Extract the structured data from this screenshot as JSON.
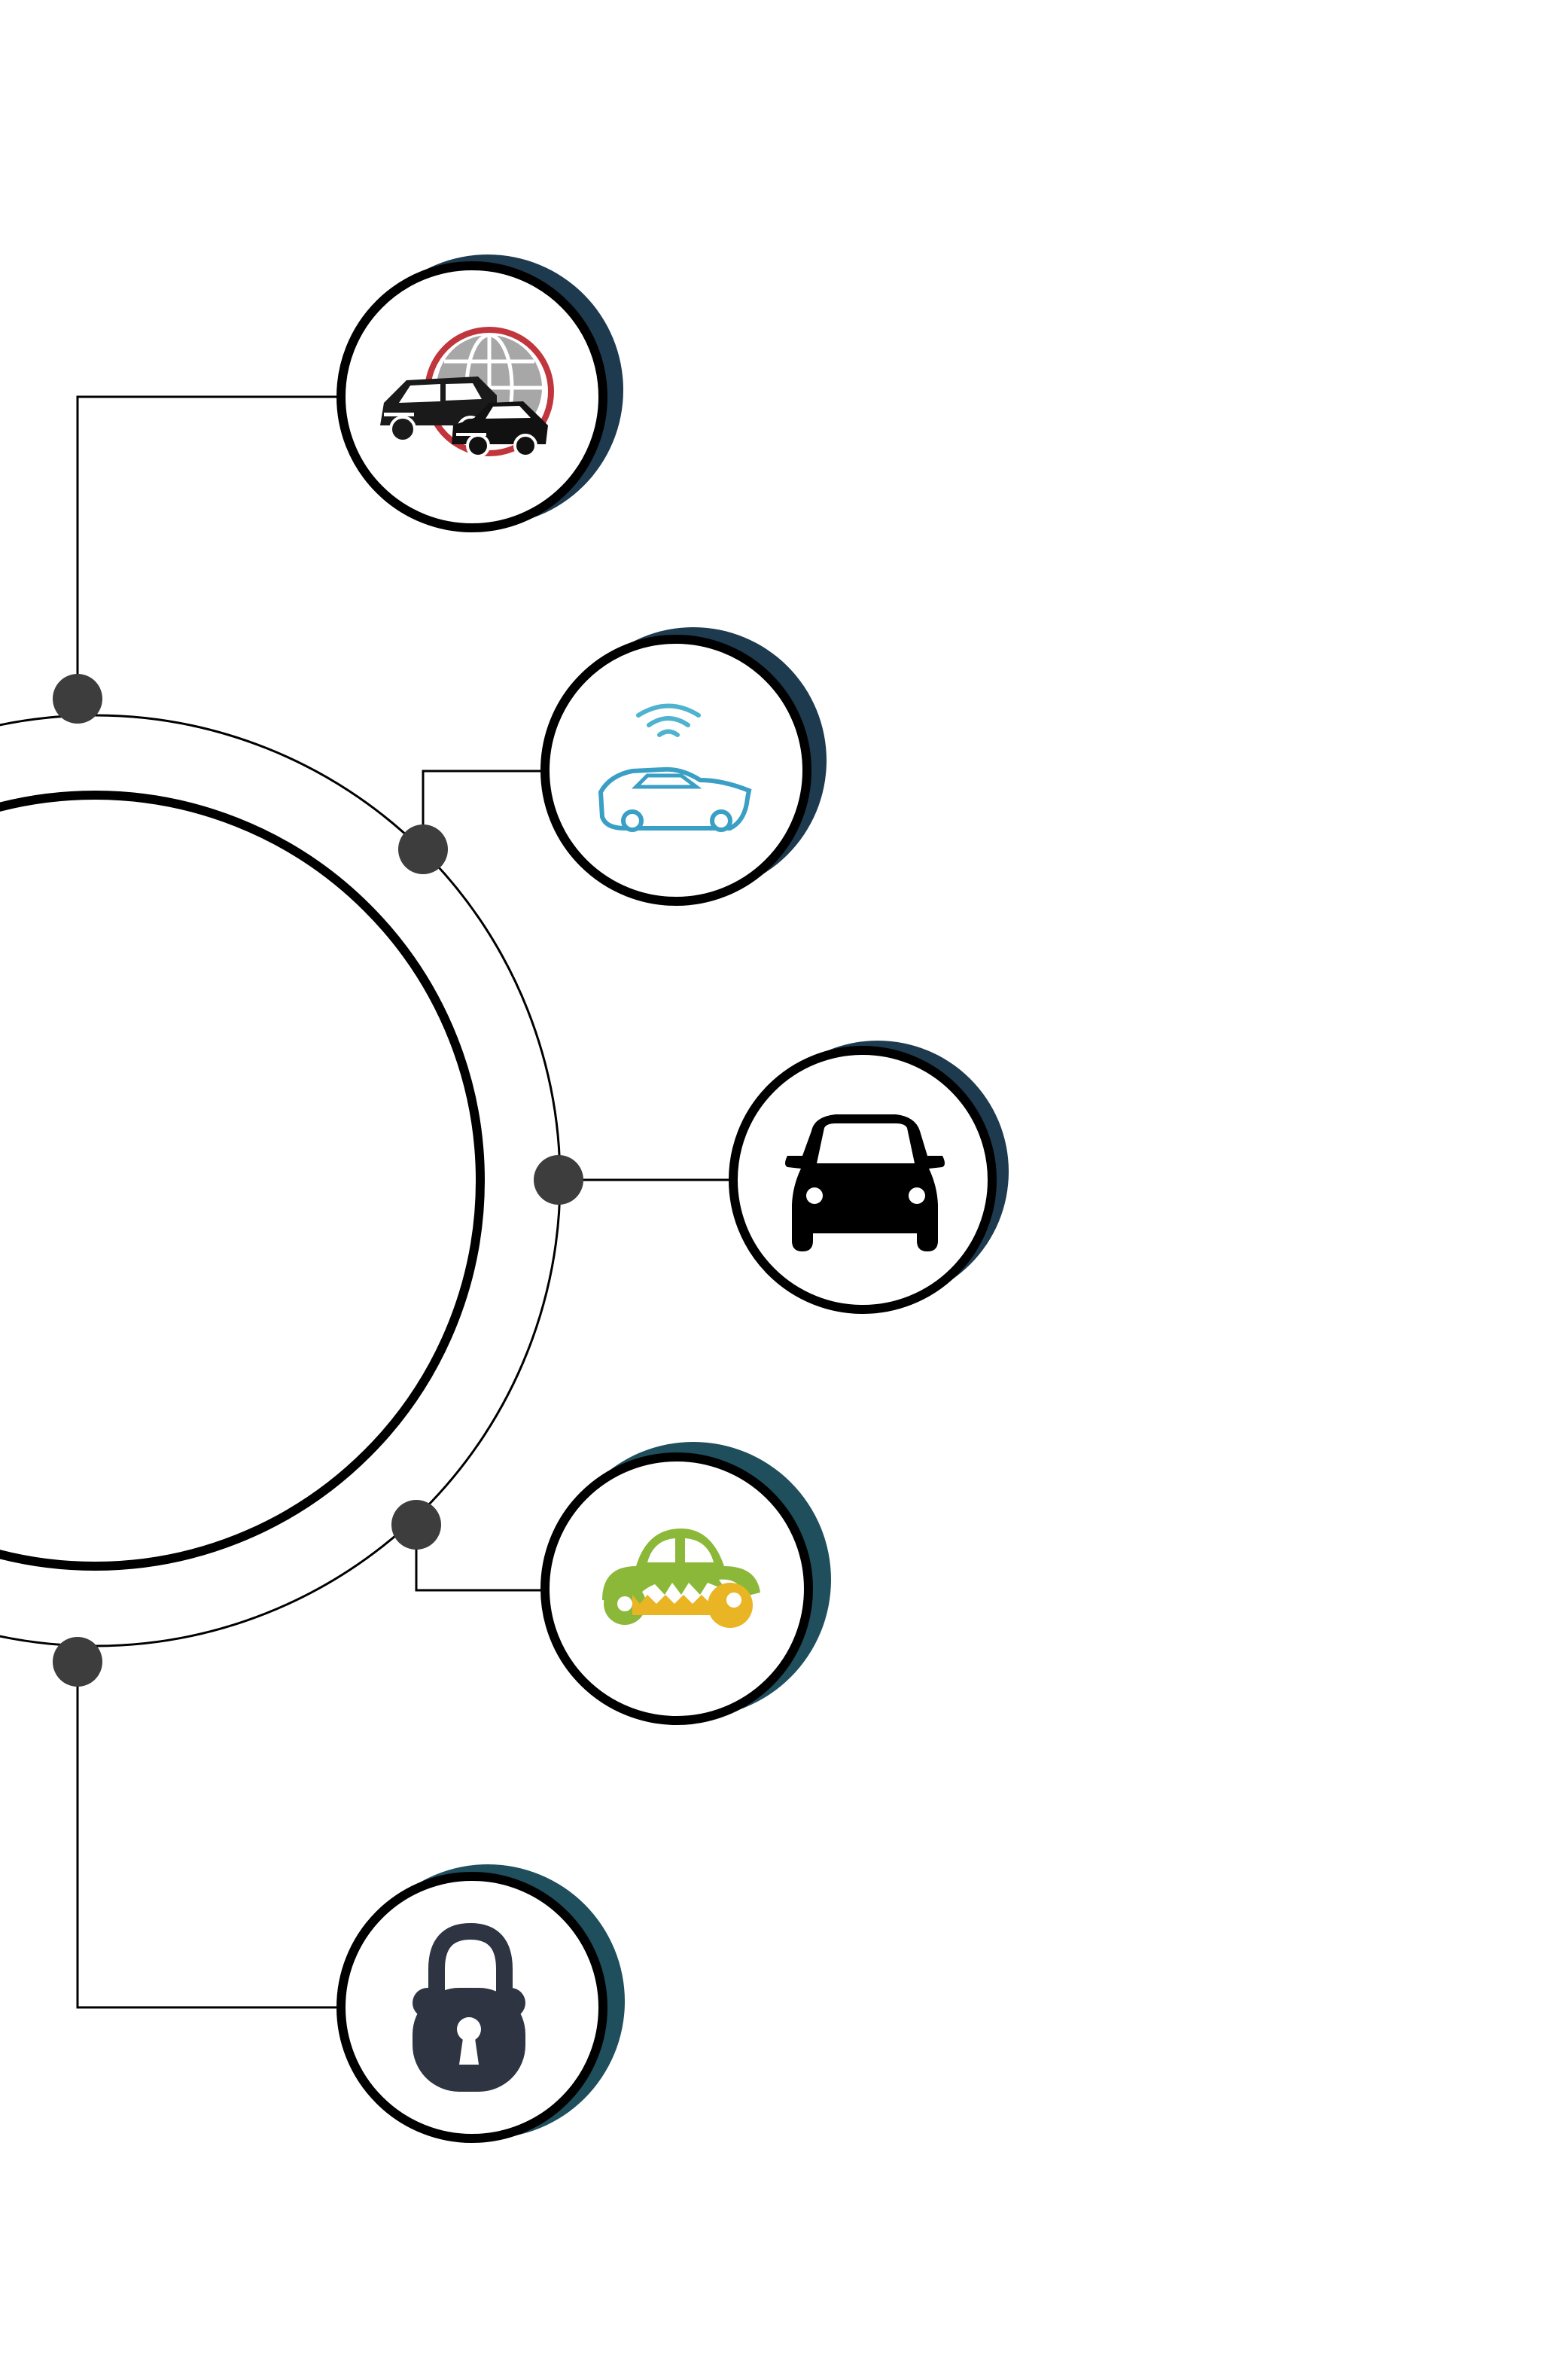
{
  "diagram": {
    "colors": {
      "background": "#ffffff",
      "line": "#000000",
      "node_dot": "#3d3d3d",
      "node_ring": "#000000",
      "shadow": "#1e3a4e",
      "shadow_teal": "#1f4e5c"
    },
    "nodes": [
      {
        "name": "fleet-globe-node",
        "icon": "fleet-vehicles-globe-icon",
        "accent": [
          "#c0363c",
          "#8a8a8a",
          "#111111"
        ]
      },
      {
        "name": "connected-car-node",
        "icon": "wireless-connected-car-icon",
        "accent": [
          "#4fb3cf",
          "#3a9fc4"
        ]
      },
      {
        "name": "car-front-node",
        "icon": "car-front-icon",
        "accent": [
          "#000000"
        ]
      },
      {
        "name": "car-key-node",
        "icon": "car-key-icon",
        "accent": [
          "#8cb83a",
          "#e9b525"
        ]
      },
      {
        "name": "padlock-node",
        "icon": "padlock-icon",
        "accent": [
          "#2e3442",
          "#ffffff"
        ]
      }
    ]
  }
}
